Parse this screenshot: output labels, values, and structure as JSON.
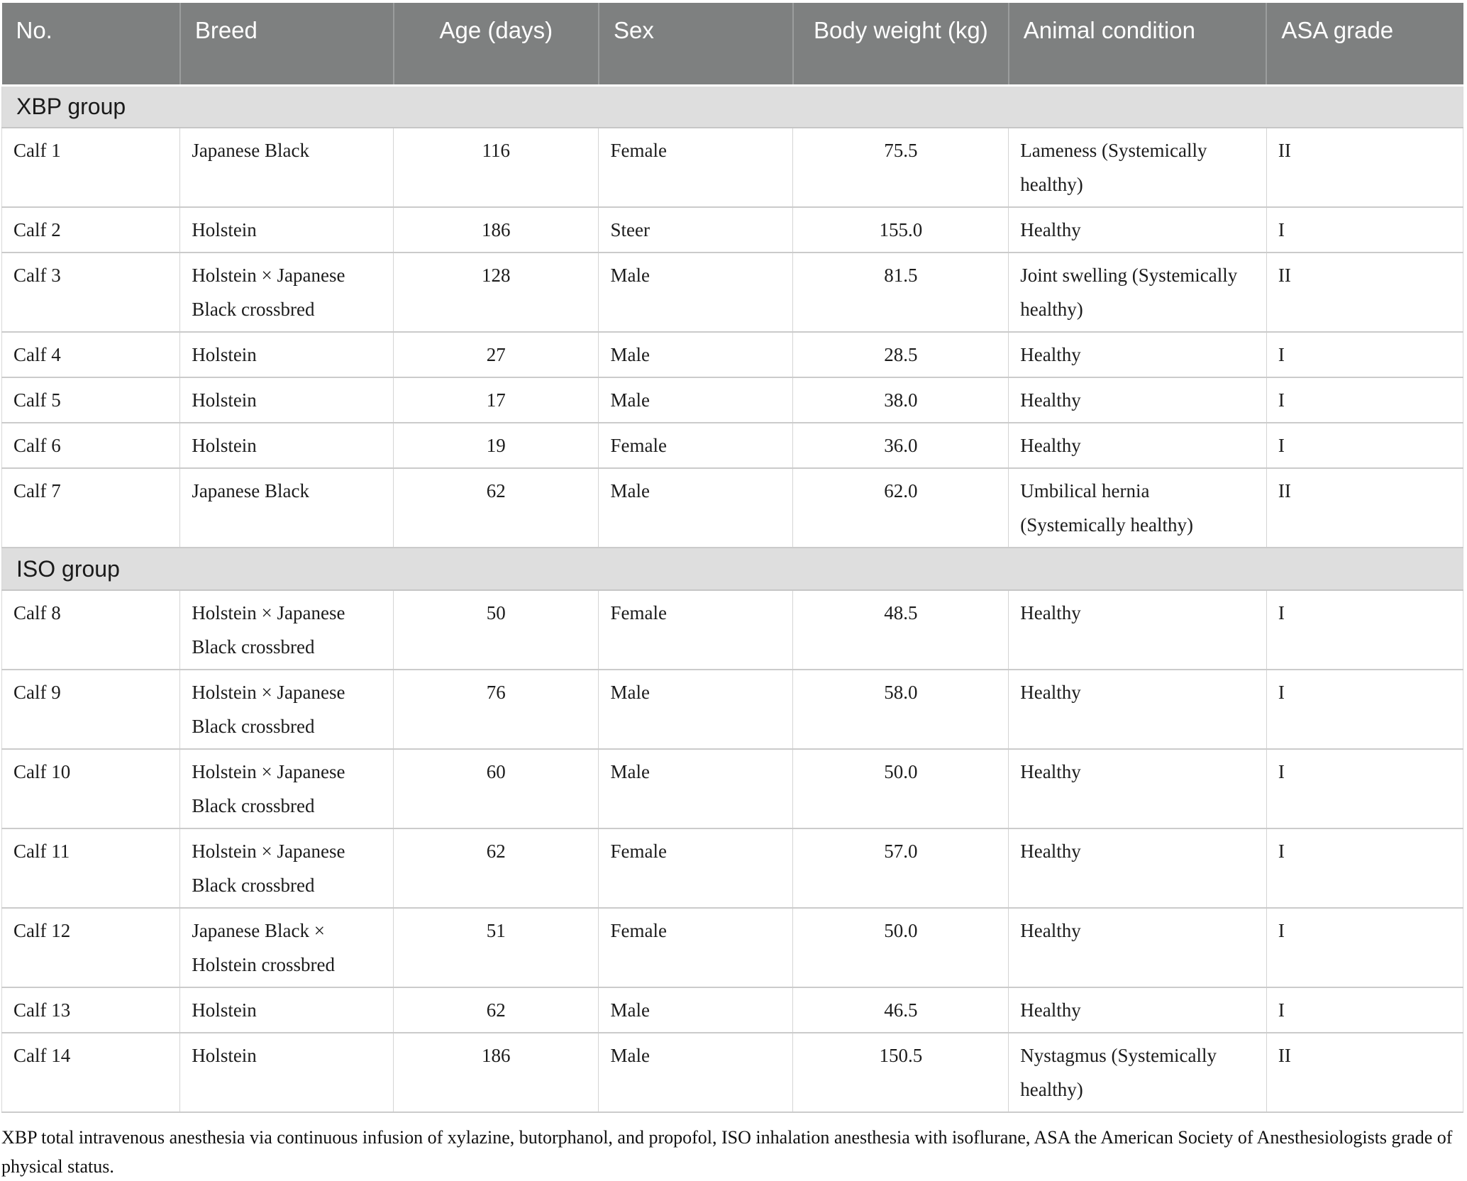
{
  "table": {
    "columns": [
      {
        "key": "no",
        "label": "No.",
        "align": "left"
      },
      {
        "key": "breed",
        "label": "Breed",
        "align": "left"
      },
      {
        "key": "age",
        "label": "Age (days)",
        "align": "center"
      },
      {
        "key": "sex",
        "label": "Sex",
        "align": "left"
      },
      {
        "key": "weight",
        "label": "Body weight (kg)",
        "align": "center"
      },
      {
        "key": "condition",
        "label": "Animal condition",
        "align": "left"
      },
      {
        "key": "asa",
        "label": "ASA grade",
        "align": "left"
      }
    ],
    "groups": [
      {
        "label": "XBP group",
        "rows": [
          [
            "Calf 1",
            "Japanese Black",
            "116",
            "Female",
            "75.5",
            "Lameness (Systemically healthy)",
            "II"
          ],
          [
            "Calf 2",
            "Holstein",
            "186",
            "Steer",
            "155.0",
            "Healthy",
            "I"
          ],
          [
            "Calf 3",
            "Holstein × Japanese Black crossbred",
            "128",
            "Male",
            "81.5",
            "Joint swelling (Systemically healthy)",
            "II"
          ],
          [
            "Calf 4",
            "Holstein",
            "27",
            "Male",
            "28.5",
            "Healthy",
            "I"
          ],
          [
            "Calf 5",
            "Holstein",
            "17",
            "Male",
            "38.0",
            "Healthy",
            "I"
          ],
          [
            "Calf 6",
            "Holstein",
            "19",
            "Female",
            "36.0",
            "Healthy",
            "I"
          ],
          [
            "Calf 7",
            "Japanese Black",
            "62",
            "Male",
            "62.0",
            "Umbilical hernia (Systemically healthy)",
            "II"
          ]
        ]
      },
      {
        "label": "ISO group",
        "rows": [
          [
            "Calf 8",
            "Holstein × Japanese Black crossbred",
            "50",
            "Female",
            "48.5",
            "Healthy",
            "I"
          ],
          [
            "Calf 9",
            "Holstein × Japanese Black crossbred",
            "76",
            "Male",
            "58.0",
            "Healthy",
            "I"
          ],
          [
            "Calf 10",
            "Holstein × Japanese Black crossbred",
            "60",
            "Male",
            "50.0",
            "Healthy",
            "I"
          ],
          [
            "Calf 11",
            "Holstein × Japanese Black crossbred",
            "62",
            "Female",
            "57.0",
            "Healthy",
            "I"
          ],
          [
            "Calf 12",
            "Japanese Black × Holstein crossbred",
            "51",
            "Female",
            "50.0",
            "Healthy",
            "I"
          ],
          [
            "Calf 13",
            "Holstein",
            "62",
            "Male",
            "46.5",
            "Healthy",
            "I"
          ],
          [
            "Calf 14",
            "Holstein",
            "186",
            "Male",
            "150.5",
            "Nystagmus (Systemically healthy)",
            "II"
          ]
        ]
      }
    ]
  },
  "footnote": "XBP total intravenous anesthesia via continuous infusion of xylazine, butorphanol, and propofol, ISO inhalation anesthesia with isoflurane, ASA the American Society of Anesthesiologists grade of physical status.",
  "colors": {
    "header_bg": "#7e8080",
    "header_text": "#ffffff",
    "band_bg": "#dedede",
    "grid_line": "#cbcbcb",
    "body_text": "#1c1c1c"
  }
}
